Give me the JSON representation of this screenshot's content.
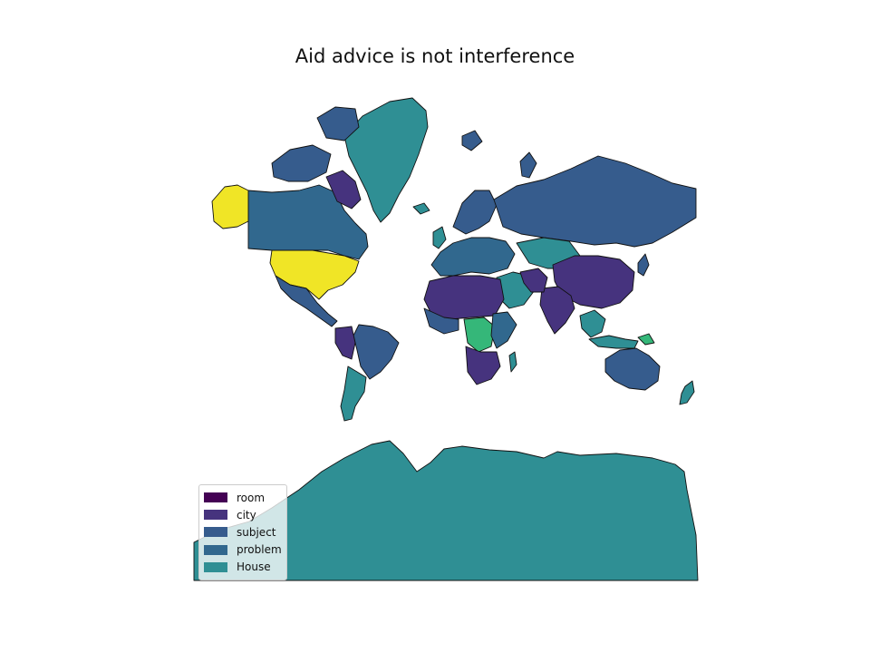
{
  "title": "Aid advice is not interference",
  "legend": {
    "items": [
      {
        "label": "room",
        "color": "#440154"
      },
      {
        "label": "city",
        "color": "#46337e"
      },
      {
        "label": "subject",
        "color": "#365c8d"
      },
      {
        "label": "problem",
        "color": "#31688e"
      },
      {
        "label": "House",
        "color": "#2f8f94"
      }
    ]
  },
  "colors": {
    "ocean": "#ffffff",
    "border": "#111111",
    "house": "#2f8f94",
    "problem": "#31688e",
    "subject": "#365c8d",
    "city": "#46337e",
    "room": "#440154",
    "highlight_yellow": "#f0e526",
    "highlight_green": "#35b779"
  }
}
